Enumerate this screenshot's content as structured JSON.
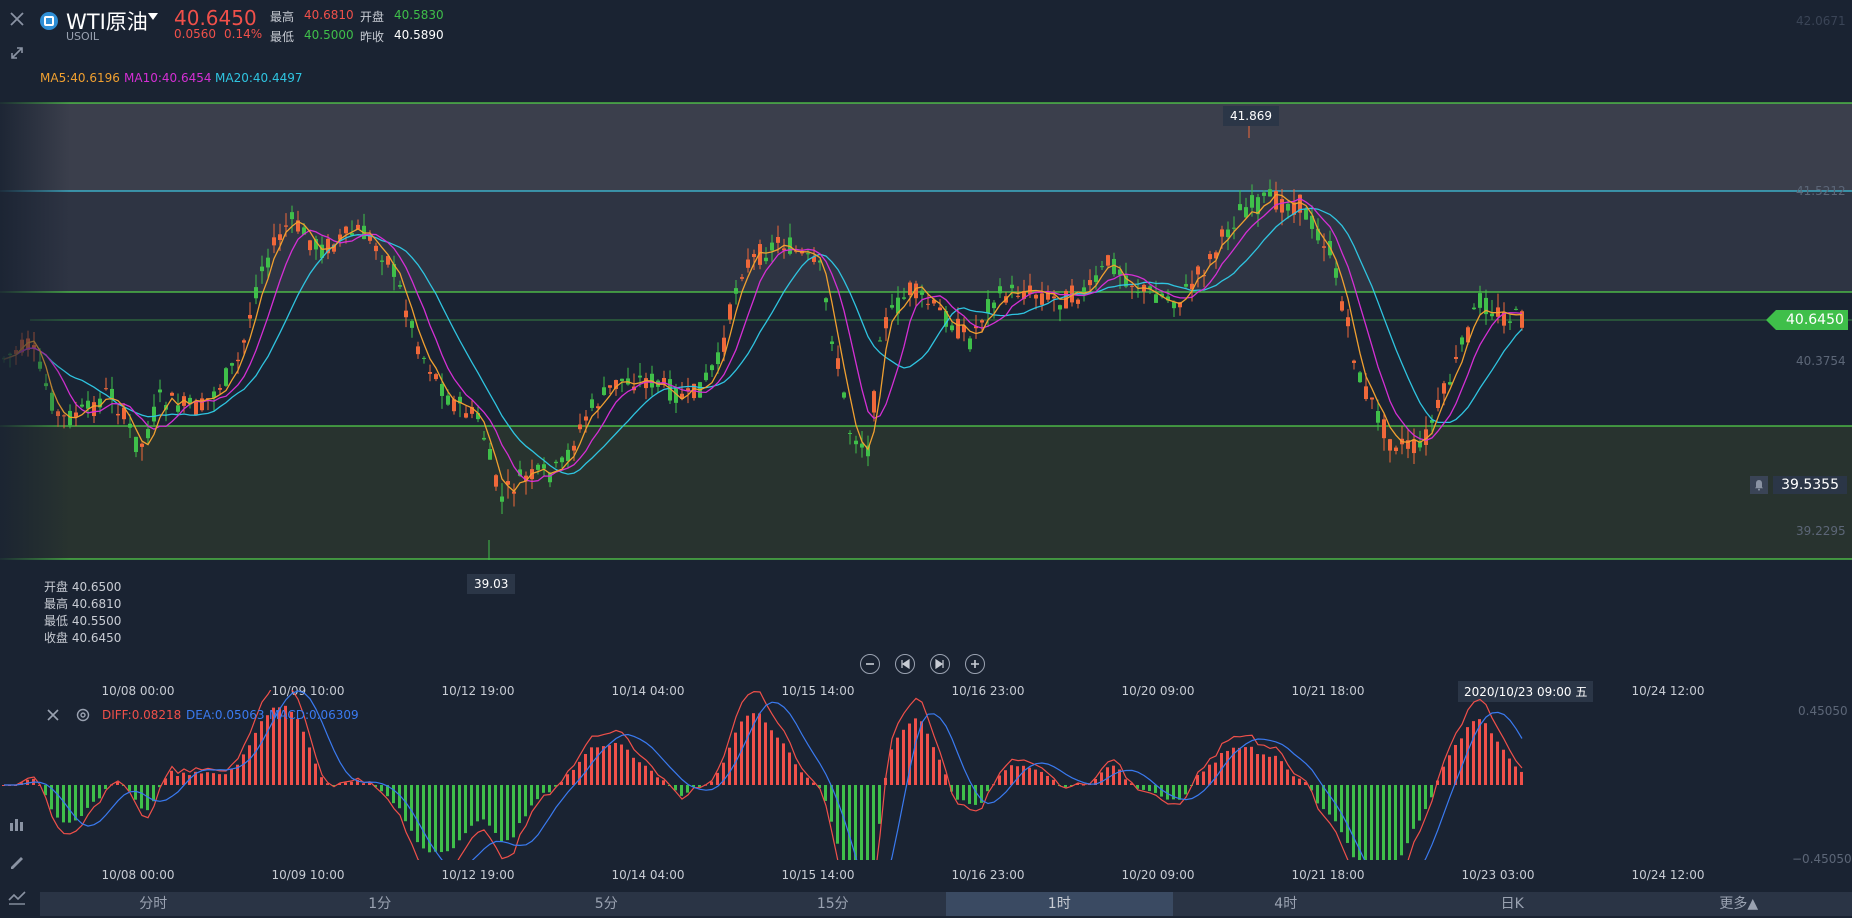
{
  "header": {
    "symbol": "WTI原油",
    "symbol_code": "USOIL",
    "price": "40.6450",
    "change": "0.0560",
    "change_pct": "0.14%",
    "high_label": "最高",
    "high_value": "40.6810",
    "open_label": "开盘",
    "open_value": "40.5830",
    "low_label": "最低",
    "low_value": "40.5000",
    "prev_close_label": "昨收",
    "prev_close_value": "40.5890"
  },
  "ma": {
    "ma5": "MA5:40.6196",
    "ma10": "MA10:40.6454",
    "ma20": "MA20:40.4497"
  },
  "price_axis": {
    "top": "42.0671",
    "l1": "41.5212",
    "l2": "40.3754",
    "l3": "39.2295",
    "current": "40.6450",
    "alert": "39.5355"
  },
  "extremes": {
    "high": "41.869",
    "low": "39.03"
  },
  "ohlc_box": {
    "open": "开盘 40.6500",
    "high": "最高 40.6810",
    "low": "最低 40.5500",
    "close": "收盘 40.6450"
  },
  "time_axis": [
    "10/08 00:00",
    "10/09 10:00",
    "10/12 19:00",
    "10/14 04:00",
    "10/15 14:00",
    "10/16 23:00",
    "10/20 09:00",
    "10/21 18:00",
    "10/23 03:00",
    "10/24 12:00"
  ],
  "crosshair_time": "2020/10/23 09:00 五",
  "macd": {
    "diff": "DIFF:0.08218",
    "dea": "DEA:0.05063",
    "macd": "MACD:0.06309",
    "axis_top": "0.45050",
    "axis_bottom": "−0.45050"
  },
  "tabs": [
    "分时",
    "1分",
    "5分",
    "15分",
    "1时",
    "4时",
    "日K",
    "更多▲"
  ],
  "active_tab": "1时",
  "colors": {
    "background": "#1a2332",
    "up": "#f0683a",
    "down": "#3fbf4a",
    "ma5": "#f0a030",
    "ma10": "#d42fd4",
    "ma20": "#2fc4e0",
    "diff": "#f0504a",
    "dea": "#3a7af0"
  },
  "icons": [
    "close-icon",
    "expand-icon",
    "bell-icon",
    "zoom-out-icon",
    "prev-icon",
    "next-icon",
    "zoom-in-icon",
    "settings-icon",
    "indicator-icon",
    "draw-icon",
    "chart-type-icon"
  ]
}
